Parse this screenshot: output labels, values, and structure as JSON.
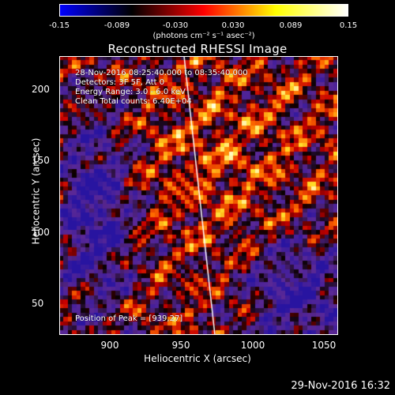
{
  "colorbar": {
    "ticks": [
      "-0.15",
      "-0.089",
      "-0.030",
      "0.030",
      "0.089",
      "0.15"
    ],
    "units": "(photons cm⁻² s⁻¹ asec⁻²)",
    "colors": [
      "#0000ff",
      "#000000",
      "#ff0000",
      "#ffff00",
      "#ffffff"
    ]
  },
  "title": "Reconstructed RHESSI Image",
  "annotations": {
    "line1": "28-Nov-2016 08:25:40.000 to 08:35:40.000",
    "line2": "Detectors: 3F 5F, Att 0",
    "line3": "Energy Range: 3.0 - 6.0 keV",
    "line4": "Clean     Total counts: 6.40E+04",
    "peak": "Position of Peak = [939,27]"
  },
  "axes": {
    "x_label": "Heliocentric X (arcsec)",
    "y_label": "Heliocentric Y (arcsec)",
    "x_ticks": [
      "900",
      "950",
      "1000",
      "1050"
    ],
    "y_ticks": [
      "200",
      "150",
      "100",
      "50"
    ]
  },
  "footer": "29-Nov-2016 16:32"
}
